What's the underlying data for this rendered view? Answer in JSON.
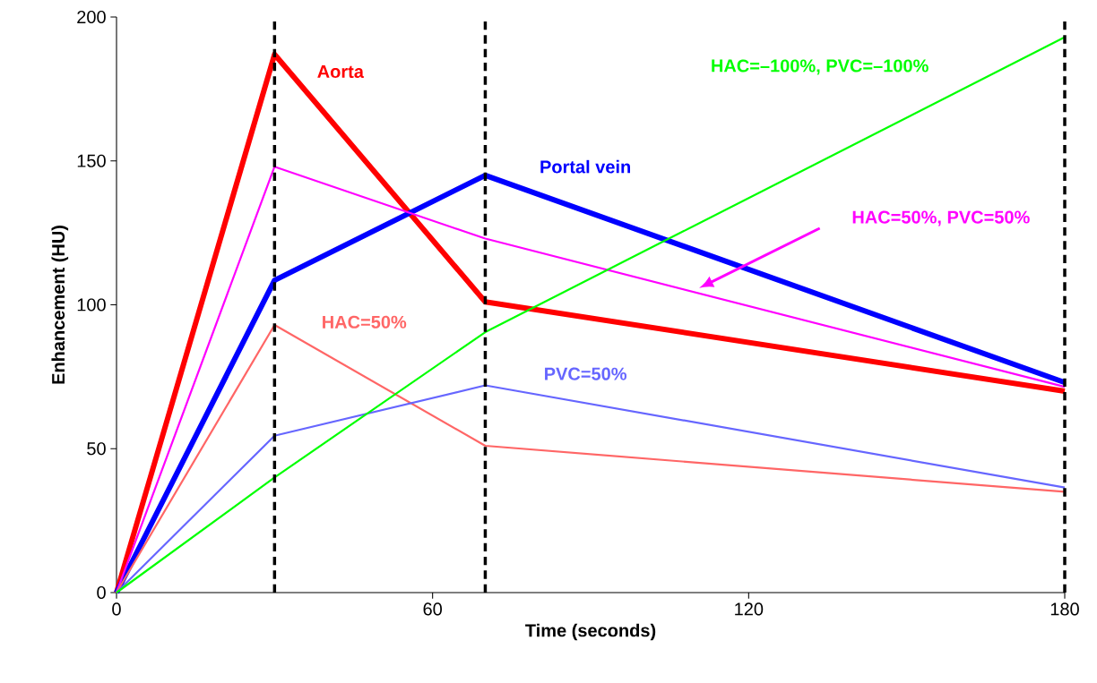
{
  "chart_data": {
    "type": "line",
    "xlabel": "Time (seconds)",
    "ylabel": "Enhancement (HU)",
    "x": [
      0,
      30,
      70,
      180
    ],
    "series": [
      {
        "name": "Aorta",
        "color": "#ff0000",
        "values": [
          0,
          187,
          101,
          70
        ]
      },
      {
        "name": "Portal vein",
        "color": "#0000ff",
        "values": [
          0,
          108.5,
          145,
          73
        ]
      },
      {
        "name": "HAC=50%, PVC=50%",
        "color": "#ff00ff",
        "values": [
          0,
          148,
          123,
          71.5
        ]
      },
      {
        "name": "HAC=50%",
        "color": "#ff6666",
        "values": [
          0,
          93,
          51,
          35
        ]
      },
      {
        "name": "PVC=50%",
        "color": "#6666ff",
        "values": [
          0,
          54.5,
          72,
          36.5
        ]
      },
      {
        "name": "HAC=–100%, PVC=–100%",
        "color": "#00ff00",
        "values": [
          0,
          40,
          90.5,
          193
        ]
      }
    ],
    "xlim": [
      0,
      180
    ],
    "ylim": [
      0,
      200
    ],
    "xticks": [
      0,
      60,
      120,
      180
    ],
    "yticks": [
      0,
      50,
      100,
      150,
      200
    ],
    "ref_lines": [
      {
        "axis": "x",
        "value": 30,
        "color": "#000000",
        "line_style": "dashed"
      },
      {
        "axis": "x",
        "value": 70,
        "color": "#000000",
        "line_style": "dashed"
      },
      {
        "axis": "x",
        "value": 180,
        "color": "#000000",
        "line_style": "dashed"
      }
    ],
    "grid": false,
    "legend": false,
    "marker": "none",
    "line_style": "solid"
  }
}
